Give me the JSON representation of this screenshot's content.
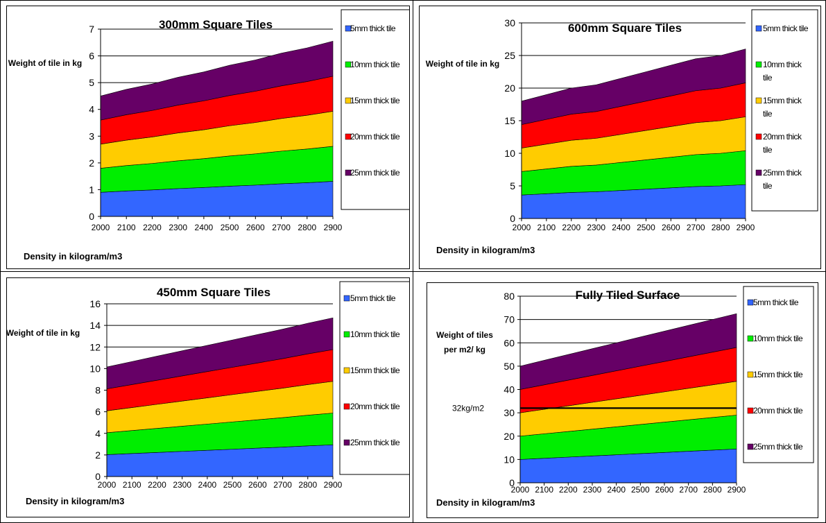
{
  "colors": {
    "5mm": "#3366ff",
    "10mm": "#00ee00",
    "15mm": "#ffcc00",
    "20mm": "#ff0000",
    "25mm": "#660066"
  },
  "chart_data": [
    {
      "type": "area",
      "title": "300mm Square Tiles",
      "ylabel": "Weight of tile in kg",
      "xlabel": "Density in kilogram/m3",
      "x": [
        2000,
        2100,
        2200,
        2300,
        2400,
        2500,
        2600,
        2700,
        2800,
        2900
      ],
      "ylim": [
        0,
        7
      ],
      "yticks": [
        0,
        1,
        2,
        3,
        4,
        5,
        6,
        7
      ],
      "grid": true,
      "legend": "right",
      "series": [
        {
          "name": "5mm thick tile",
          "color": "#3366ff",
          "values": [
            0.9,
            0.95,
            0.99,
            1.04,
            1.08,
            1.13,
            1.17,
            1.22,
            1.26,
            1.31
          ]
        },
        {
          "name": "10mm thick tile",
          "color": "#00ee00",
          "values": [
            0.9,
            0.95,
            0.99,
            1.04,
            1.08,
            1.13,
            1.17,
            1.22,
            1.26,
            1.31
          ]
        },
        {
          "name": "15mm thick tile",
          "color": "#ffcc00",
          "values": [
            0.9,
            0.95,
            0.99,
            1.04,
            1.08,
            1.13,
            1.17,
            1.22,
            1.26,
            1.31
          ]
        },
        {
          "name": "20mm thick tile",
          "color": "#ff0000",
          "values": [
            0.9,
            0.95,
            0.99,
            1.04,
            1.08,
            1.13,
            1.17,
            1.22,
            1.26,
            1.31
          ]
        },
        {
          "name": "25mm thick tile",
          "color": "#660066",
          "values": [
            0.9,
            0.95,
            0.99,
            1.04,
            1.08,
            1.13,
            1.17,
            1.22,
            1.26,
            1.31
          ]
        }
      ]
    },
    {
      "type": "area",
      "title": "600mm Square Tiles",
      "ylabel": "Weight of tile in kg",
      "xlabel": "Density in kilogram/m3",
      "x": [
        2000,
        2100,
        2200,
        2300,
        2400,
        2500,
        2600,
        2700,
        2800,
        2900
      ],
      "ylim": [
        0,
        30
      ],
      "yticks": [
        0,
        5,
        10,
        15,
        20,
        25,
        30
      ],
      "grid": true,
      "legend": "right",
      "series": [
        {
          "name": "5mm thick tile",
          "color": "#3366ff",
          "values": [
            3.6,
            3.8,
            4.0,
            4.1,
            4.3,
            4.5,
            4.7,
            4.9,
            5.0,
            5.2
          ]
        },
        {
          "name": "10mm thick tile",
          "color": "#00ee00",
          "values": [
            3.6,
            3.8,
            4.0,
            4.1,
            4.3,
            4.5,
            4.7,
            4.9,
            5.0,
            5.2
          ]
        },
        {
          "name": "15mm thick tile",
          "color": "#ffcc00",
          "values": [
            3.6,
            3.8,
            4.0,
            4.1,
            4.3,
            4.5,
            4.7,
            4.9,
            5.0,
            5.2
          ]
        },
        {
          "name": "20mm thick tile",
          "color": "#ff0000",
          "values": [
            3.6,
            3.8,
            4.0,
            4.1,
            4.3,
            4.5,
            4.7,
            4.9,
            5.0,
            5.2
          ]
        },
        {
          "name": "25mm thick tile",
          "color": "#660066",
          "values": [
            3.6,
            3.8,
            4.0,
            4.1,
            4.3,
            4.5,
            4.7,
            4.9,
            5.0,
            5.2
          ]
        }
      ]
    },
    {
      "type": "area",
      "title": "450mm Square Tiles",
      "ylabel": "Weight of tile in kg",
      "xlabel": "Density in kilogram/m3",
      "x": [
        2000,
        2100,
        2200,
        2300,
        2400,
        2500,
        2600,
        2700,
        2800,
        2900
      ],
      "ylim": [
        0,
        16
      ],
      "yticks": [
        0,
        2,
        4,
        6,
        8,
        10,
        12,
        14,
        16
      ],
      "grid": true,
      "legend": "right",
      "series": [
        {
          "name": "5mm thick tile",
          "color": "#3366ff",
          "values": [
            2.03,
            2.13,
            2.23,
            2.33,
            2.43,
            2.53,
            2.63,
            2.73,
            2.84,
            2.94
          ]
        },
        {
          "name": "10mm thick tile",
          "color": "#00ee00",
          "values": [
            2.03,
            2.13,
            2.23,
            2.33,
            2.43,
            2.53,
            2.63,
            2.73,
            2.84,
            2.94
          ]
        },
        {
          "name": "15mm thick tile",
          "color": "#ffcc00",
          "values": [
            2.03,
            2.13,
            2.23,
            2.33,
            2.43,
            2.53,
            2.63,
            2.73,
            2.84,
            2.94
          ]
        },
        {
          "name": "20mm thick tile",
          "color": "#ff0000",
          "values": [
            2.03,
            2.13,
            2.23,
            2.33,
            2.43,
            2.53,
            2.63,
            2.73,
            2.84,
            2.94
          ]
        },
        {
          "name": "25mm thick tile",
          "color": "#660066",
          "values": [
            2.03,
            2.13,
            2.23,
            2.33,
            2.43,
            2.53,
            2.63,
            2.73,
            2.84,
            2.94
          ]
        }
      ]
    },
    {
      "type": "area",
      "title": "Fully Tiled Surface",
      "ylabel": "Weight of tiles per m2/ kg",
      "xlabel": "Density in kilogram/m3",
      "x": [
        2000,
        2100,
        2200,
        2300,
        2400,
        2500,
        2600,
        2700,
        2800,
        2900
      ],
      "ylim": [
        0,
        80
      ],
      "yticks": [
        0,
        10,
        20,
        30,
        40,
        50,
        60,
        70,
        80
      ],
      "grid": true,
      "legend": "right",
      "reference_line": {
        "label": "32kg/m2",
        "value": 32
      },
      "series": [
        {
          "name": "5mm thick tile",
          "color": "#3366ff",
          "values": [
            10.0,
            10.5,
            11.0,
            11.5,
            12.0,
            12.5,
            13.0,
            13.5,
            14.0,
            14.5
          ]
        },
        {
          "name": "10mm thick tile",
          "color": "#00ee00",
          "values": [
            10.0,
            10.5,
            11.0,
            11.5,
            12.0,
            12.5,
            13.0,
            13.5,
            14.0,
            14.5
          ]
        },
        {
          "name": "15mm thick tile",
          "color": "#ffcc00",
          "values": [
            10.0,
            10.5,
            11.0,
            11.5,
            12.0,
            12.5,
            13.0,
            13.5,
            14.0,
            14.5
          ]
        },
        {
          "name": "20mm thick tile",
          "color": "#ff0000",
          "values": [
            10.0,
            10.5,
            11.0,
            11.5,
            12.0,
            12.5,
            13.0,
            13.5,
            14.0,
            14.5
          ]
        },
        {
          "name": "25mm thick tile",
          "color": "#660066",
          "values": [
            10.0,
            10.5,
            11.0,
            11.5,
            12.0,
            12.5,
            13.0,
            13.5,
            14.0,
            14.5
          ]
        }
      ]
    }
  ]
}
